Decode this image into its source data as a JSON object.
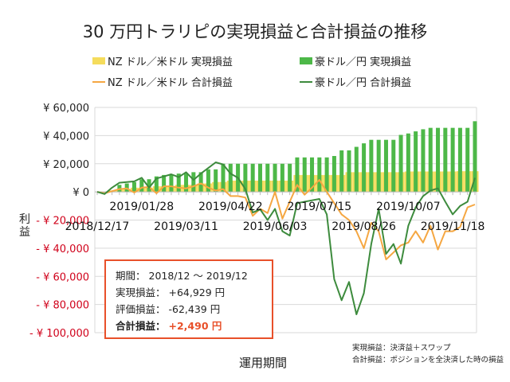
{
  "chart_data": {
    "type": "bar+line",
    "title": "30 万円トラリピの実現損益と合計損益の推移",
    "xlabel": "運用期間",
    "ylabel": "利益",
    "ylim": [
      -100000,
      60000
    ],
    "yticks": [
      60000,
      40000,
      20000,
      0,
      -20000,
      -40000,
      -60000,
      -80000,
      -100000
    ],
    "ytick_labels": [
      "¥ 60,000",
      "¥ 40,000",
      "¥ 20,000",
      "¥ 0",
      "- ¥ 20,000",
      "- ¥ 40,000",
      "- ¥ 60,000",
      "- ¥ 80,000",
      "- ¥ 100,000"
    ],
    "xtick_labels": [
      {
        "index": 0,
        "label": "2018/12/17"
      },
      {
        "index": 6,
        "label": "2019/01/28"
      },
      {
        "index": 12,
        "label": "2019/03/11"
      },
      {
        "index": 18,
        "label": "2019/04/22"
      },
      {
        "index": 24,
        "label": "2019/06/03"
      },
      {
        "index": 30,
        "label": "2019/07/15"
      },
      {
        "index": 36,
        "label": "2019/08/26"
      },
      {
        "index": 42,
        "label": "2019/10/07"
      },
      {
        "index": 48,
        "label": "2019/11/18"
      }
    ],
    "n_points": 52,
    "grid": true,
    "legend_position": "top",
    "series": [
      {
        "name": "NZ ドル／米ドル 実現損益",
        "kind": "bar",
        "color": "#f5dc5c",
        "values": [
          0,
          0,
          1000,
          2000,
          2000,
          3000,
          3000,
          3000,
          4000,
          4000,
          4000,
          5000,
          5000,
          5000,
          6000,
          6000,
          7000,
          7000,
          8000,
          8000,
          8000,
          8000,
          8000,
          8000,
          8000,
          8000,
          8000,
          12000,
          12000,
          12000,
          12000,
          12000,
          12000,
          12000,
          14000,
          14000,
          14000,
          14000,
          14000,
          14000,
          14000,
          14000,
          14500,
          14500,
          14500,
          14500,
          14500,
          14500,
          14500,
          14700,
          14700,
          14700
        ]
      },
      {
        "name": "豪ドル／円 実現損益",
        "kind": "bar",
        "color": "#4db848",
        "values": [
          0,
          0,
          0,
          5000,
          6000,
          7000,
          9000,
          9000,
          11000,
          12000,
          12000,
          13000,
          13000,
          14000,
          14000,
          16000,
          16000,
          20000,
          20000,
          20000,
          20000,
          20000,
          20000,
          20000,
          20000,
          20000,
          20000,
          24500,
          24500,
          24500,
          24500,
          24500,
          25500,
          29500,
          29500,
          32000,
          34500,
          37000,
          37000,
          37000,
          37000,
          40500,
          41500,
          43000,
          44500,
          45500,
          45500,
          45500,
          45500,
          45500,
          45500,
          50200
        ]
      },
      {
        "name": "NZ ドル／米ドル 合計損益",
        "kind": "line",
        "color": "#f5a742",
        "values": [
          0,
          -1000,
          500,
          2000,
          2500,
          -500,
          3000,
          3500,
          -1000,
          4000,
          4000,
          3000,
          2500,
          4000,
          6000,
          3000,
          1000,
          2000,
          -3000,
          -3000,
          -4000,
          -17000,
          -12000,
          -15000,
          0,
          -19000,
          -7000,
          5000,
          -2000,
          3000,
          8500,
          0,
          -8000,
          -16000,
          -20000,
          -28000,
          -40000,
          -22000,
          -28000,
          -48000,
          -43000,
          -38000,
          -36000,
          -28000,
          -36000,
          -24000,
          -41000,
          -28000,
          -28000,
          -25000,
          -11000,
          -9000
        ]
      },
      {
        "name": "豪ドル／円 合計損益",
        "kind": "line",
        "color": "#3d8b3d",
        "values": [
          0,
          -1500,
          3000,
          6500,
          7000,
          7500,
          10000,
          3000,
          9500,
          11000,
          12500,
          10500,
          14000,
          8500,
          13000,
          17000,
          21000,
          19500,
          13000,
          10000,
          2000,
          -14700,
          -12400,
          -20000,
          -12000,
          -28000,
          -31000,
          -8000,
          -7000,
          -6000,
          -5000,
          -16000,
          -62000,
          -77000,
          -64000,
          -87000,
          -72000,
          -37000,
          -12000,
          -44000,
          -37000,
          -51000,
          -24000,
          -11000,
          -3000,
          1000,
          2500,
          -7000,
          -16000,
          -10000,
          -7000,
          10000
        ]
      }
    ]
  },
  "info_box": {
    "period_label": "期間：",
    "period_value": "2018/12 ～ 2019/12",
    "realized_label": "実現損益：",
    "realized_value": "+64,929 円",
    "unrealized_label": "評価損益：",
    "unrealized_value": "-62,439 円",
    "total_label": "合計損益：",
    "total_value": "+2,490 円"
  },
  "notes": [
    "実現損益：決済益＋スワップ",
    "合計損益：ポジションを全決済した時の損益"
  ],
  "colors": {
    "negative_tick": "#d0021b",
    "box_border": "#e8502a"
  }
}
